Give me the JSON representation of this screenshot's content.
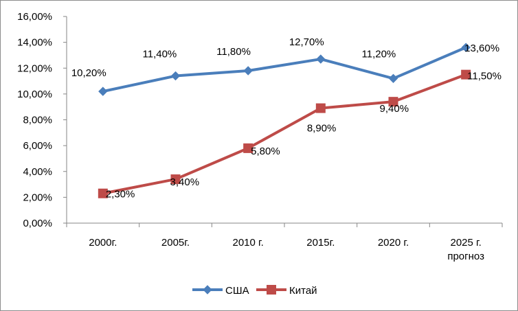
{
  "chart_data": {
    "type": "line",
    "categories": [
      "2000г.",
      "2005г.",
      "2010 г.",
      "2015г.",
      "2020 г.",
      "2025 г. прогноз"
    ],
    "categories_display": [
      [
        "2000г."
      ],
      [
        "2005г."
      ],
      [
        "2010 г."
      ],
      [
        "2015г."
      ],
      [
        "2020 г."
      ],
      [
        "2025 г.",
        "прогноз"
      ]
    ],
    "series": [
      {
        "name": "США",
        "color": "#4a7ebb",
        "marker": "diamond",
        "values": [
          10.2,
          11.4,
          11.8,
          12.7,
          11.2,
          13.6
        ],
        "labels": [
          "10,20%",
          "11,40%",
          "11,80%",
          "12,70%",
          "11,20%",
          "13,60%"
        ]
      },
      {
        "name": "Китай",
        "color": "#be4b48",
        "marker": "square",
        "values": [
          2.3,
          3.4,
          5.8,
          8.9,
          9.4,
          11.5
        ],
        "labels": [
          "2,30%",
          "3,40%",
          "5,80%",
          "8,90%",
          "9,40%",
          "11,50%"
        ]
      }
    ],
    "ylim": [
      0,
      16
    ],
    "yticks": [
      0,
      2,
      4,
      6,
      8,
      10,
      12,
      14,
      16
    ],
    "ytick_labels": [
      "0,00%",
      "2,00%",
      "4,00%",
      "6,00%",
      "8,00%",
      "10,00%",
      "12,00%",
      "14,00%",
      "16,00%"
    ],
    "title": "",
    "xlabel": "",
    "ylabel": "",
    "grid": false,
    "legend_position": "bottom"
  }
}
